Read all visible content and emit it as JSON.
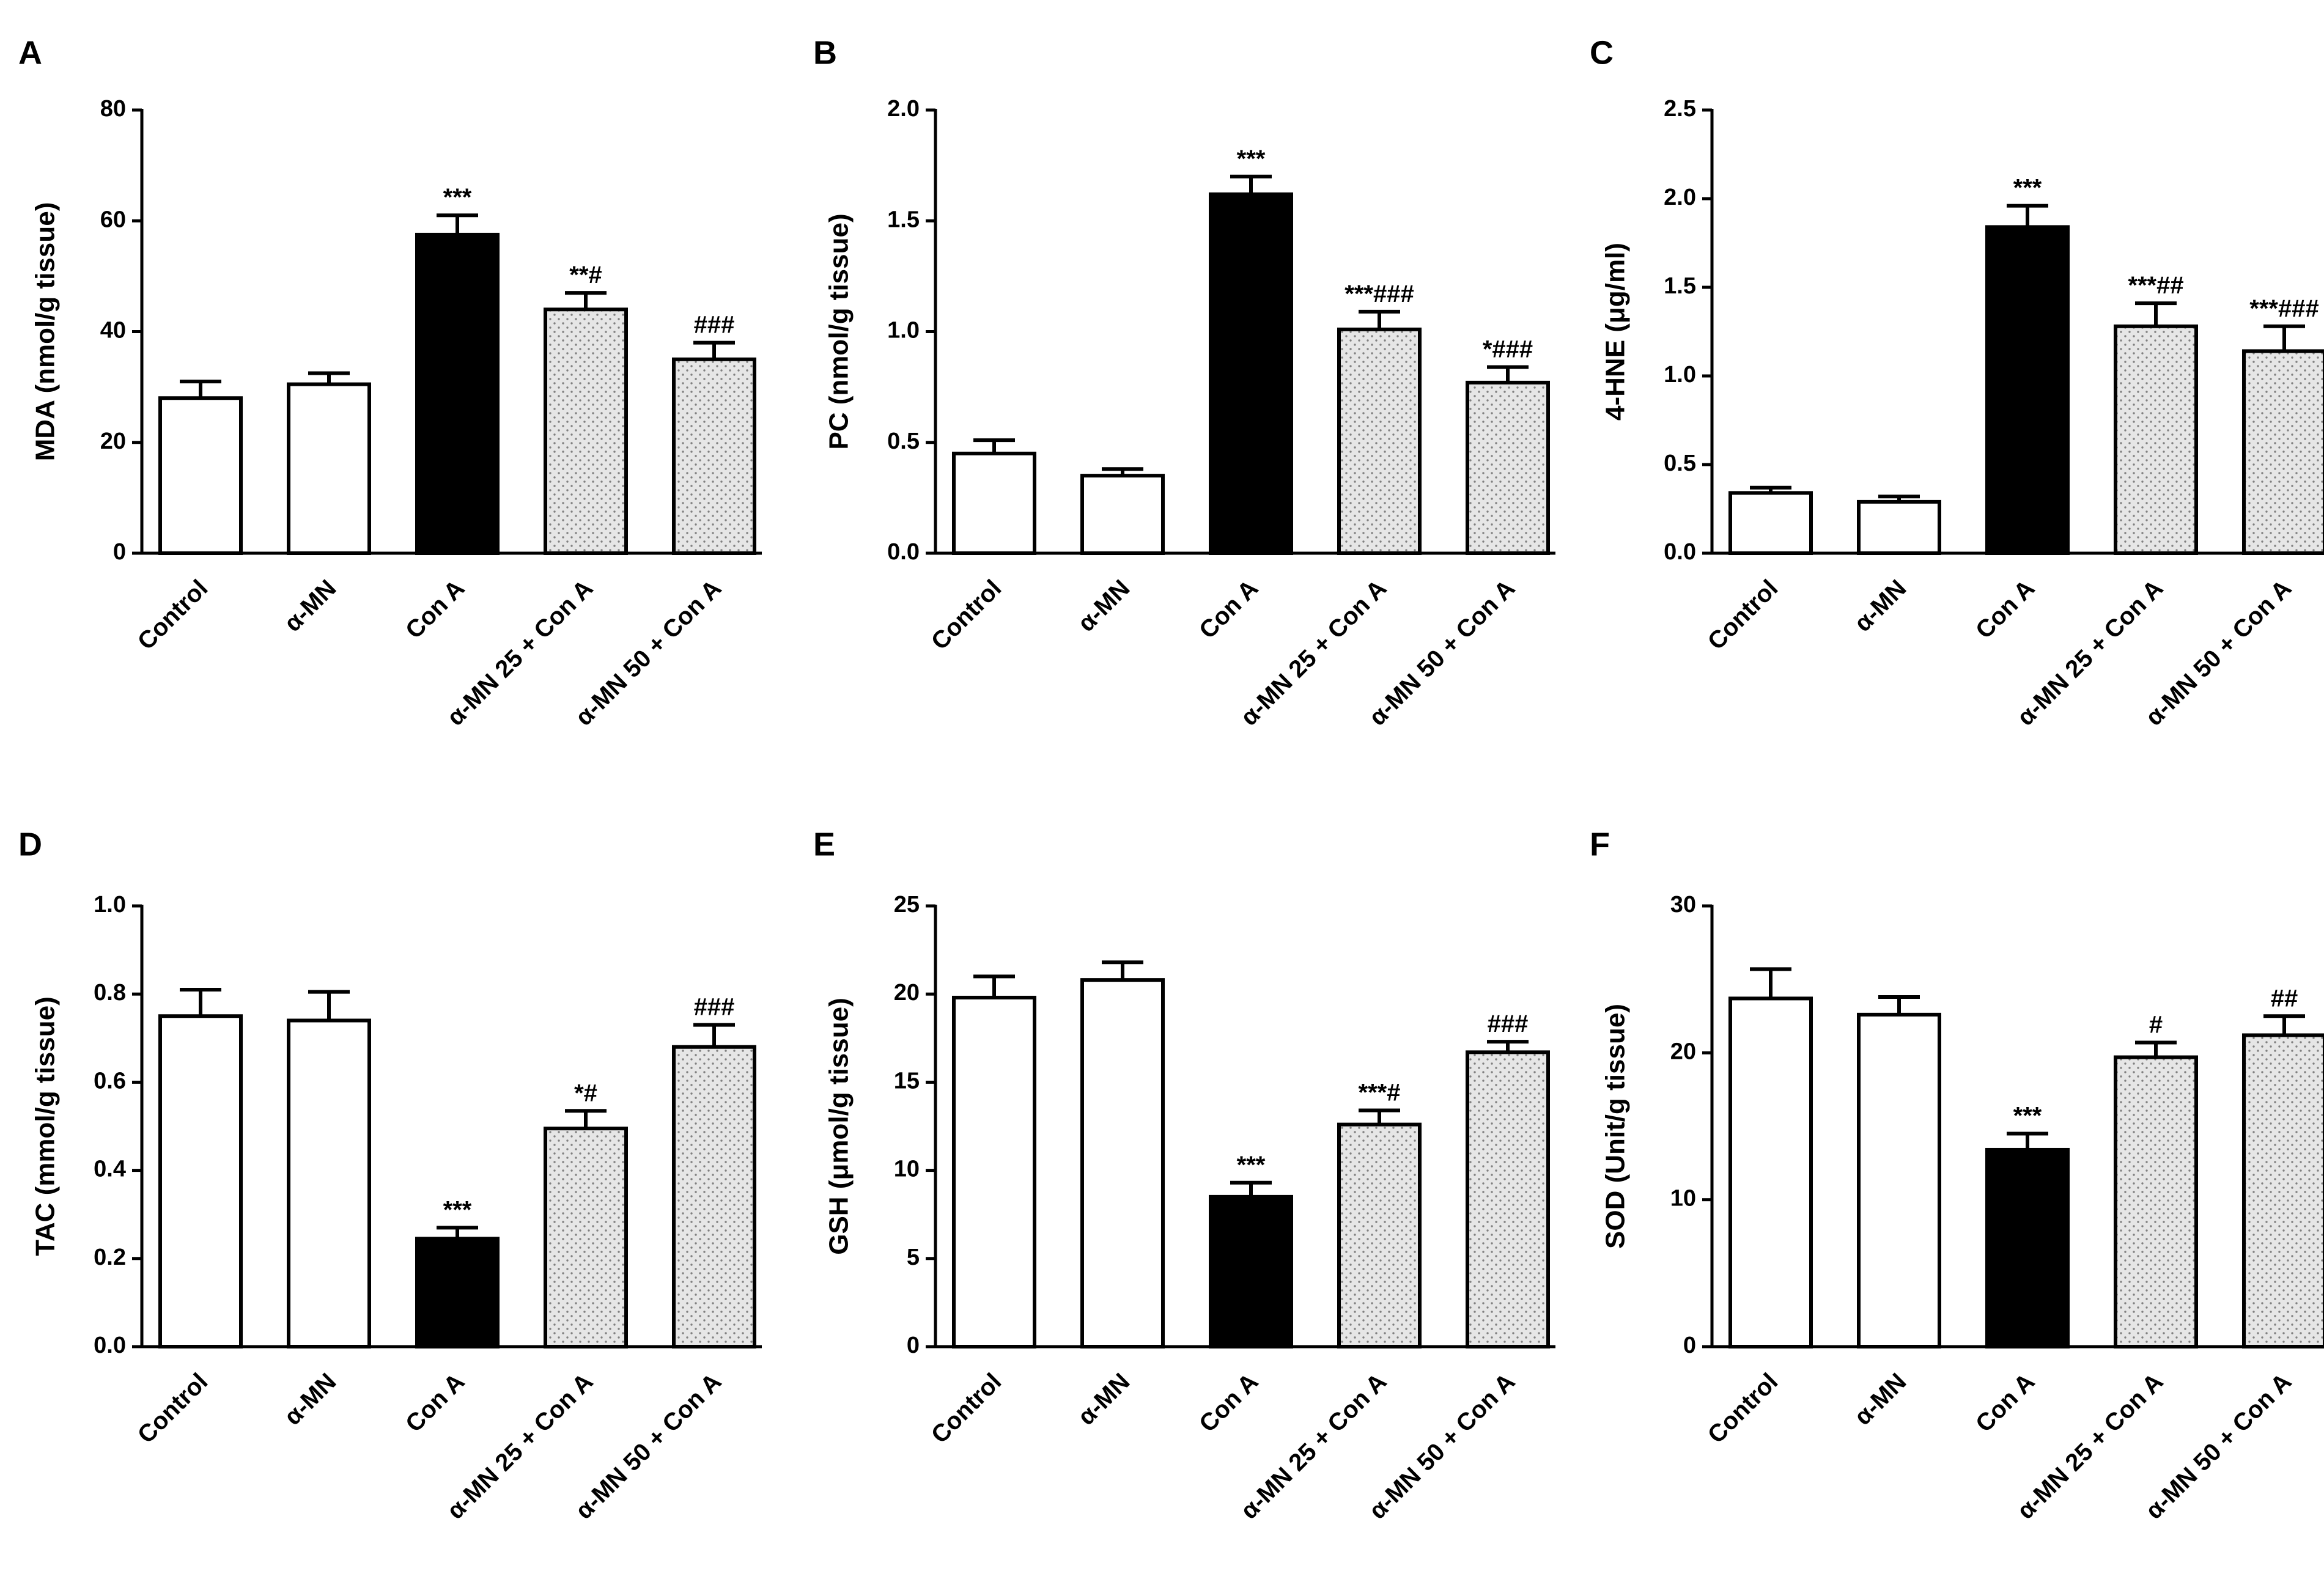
{
  "colors": {
    "axis": "#000000",
    "open_fill": "#ffffff",
    "solid_fill": "#000000",
    "dotted_fill": "#e6e6e6",
    "dot": "#808080"
  },
  "chart_data": [
    {
      "panel": "A",
      "type": "bar",
      "ylabel": "MDA (nmol/g tissue)",
      "ylim": [
        0,
        80
      ],
      "yticks": [
        0,
        20,
        40,
        60,
        80
      ],
      "ytick_labels": [
        "0",
        "20",
        "40",
        "60",
        "80"
      ],
      "categories": [
        "Control",
        "α-MN",
        "Con A",
        "α-MN 25 + Con A",
        "α-MN 50 + Con A"
      ],
      "values": [
        28,
        30.5,
        57.5,
        44,
        35
      ],
      "errors": [
        3,
        2,
        3.5,
        3,
        3
      ],
      "fills": [
        "open",
        "open",
        "solid",
        "dotted",
        "dotted"
      ],
      "annotations": [
        "",
        "",
        "***",
        "**#",
        "###"
      ]
    },
    {
      "panel": "B",
      "type": "bar",
      "ylabel": "PC (nmol/g tissue)",
      "ylim": [
        0,
        2.0
      ],
      "yticks": [
        0,
        0.5,
        1.0,
        1.5,
        2.0
      ],
      "ytick_labels": [
        "0.0",
        "0.5",
        "1.0",
        "1.5",
        "2.0"
      ],
      "categories": [
        "Control",
        "α-MN",
        "Con A",
        "α-MN 25 + Con A",
        "α-MN 50 + Con A"
      ],
      "values": [
        0.45,
        0.35,
        1.62,
        1.01,
        0.77
      ],
      "errors": [
        0.06,
        0.03,
        0.08,
        0.08,
        0.07
      ],
      "fills": [
        "open",
        "open",
        "solid",
        "dotted",
        "dotted"
      ],
      "annotations": [
        "",
        "",
        "***",
        "***###",
        "*###"
      ]
    },
    {
      "panel": "C",
      "type": "bar",
      "ylabel": "4-HNE (μg/ml)",
      "ylim": [
        0,
        2.5
      ],
      "yticks": [
        0,
        0.5,
        1.0,
        1.5,
        2.0,
        2.5
      ],
      "ytick_labels": [
        "0.0",
        "0.5",
        "1.0",
        "1.5",
        "2.0",
        "2.5"
      ],
      "categories": [
        "Control",
        "α-MN",
        "Con A",
        "α-MN 25 + Con A",
        "α-MN 50 + Con A"
      ],
      "values": [
        0.34,
        0.29,
        1.84,
        1.28,
        1.14
      ],
      "errors": [
        0.03,
        0.03,
        0.12,
        0.13,
        0.14
      ],
      "fills": [
        "open",
        "open",
        "solid",
        "dotted",
        "dotted"
      ],
      "annotations": [
        "",
        "",
        "***",
        "***##",
        "***###"
      ]
    },
    {
      "panel": "D",
      "type": "bar",
      "ylabel": "TAC (mmol/g tissue)",
      "ylim": [
        0,
        1.0
      ],
      "yticks": [
        0,
        0.2,
        0.4,
        0.6,
        0.8,
        1.0
      ],
      "ytick_labels": [
        "0.0",
        "0.2",
        "0.4",
        "0.6",
        "0.8",
        "1.0"
      ],
      "categories": [
        "Control",
        "α-MN",
        "Con A",
        "α-MN 25 + Con A",
        "α-MN 50 + Con A"
      ],
      "values": [
        0.75,
        0.74,
        0.245,
        0.495,
        0.68
      ],
      "errors": [
        0.06,
        0.065,
        0.025,
        0.04,
        0.05
      ],
      "fills": [
        "open",
        "open",
        "solid",
        "dotted",
        "dotted"
      ],
      "annotations": [
        "",
        "",
        "***",
        "*#",
        "###"
      ]
    },
    {
      "panel": "E",
      "type": "bar",
      "ylabel": "GSH (μmol/g tissue)",
      "ylim": [
        0,
        25
      ],
      "yticks": [
        0,
        5,
        10,
        15,
        20,
        25
      ],
      "ytick_labels": [
        "0",
        "5",
        "10",
        "15",
        "20",
        "25"
      ],
      "categories": [
        "Control",
        "α-MN",
        "Con A",
        "α-MN 25 + Con A",
        "α-MN 50 + Con A"
      ],
      "values": [
        19.8,
        20.8,
        8.5,
        12.6,
        16.7
      ],
      "errors": [
        1.2,
        1.0,
        0.8,
        0.8,
        0.6
      ],
      "fills": [
        "open",
        "open",
        "solid",
        "dotted",
        "dotted"
      ],
      "annotations": [
        "",
        "",
        "***",
        "***#",
        "###"
      ]
    },
    {
      "panel": "F",
      "type": "bar",
      "ylabel": "SOD (Unit/g tissue)",
      "ylim": [
        0,
        30
      ],
      "yticks": [
        0,
        10,
        20,
        30
      ],
      "ytick_labels": [
        "0",
        "10",
        "20",
        "30"
      ],
      "categories": [
        "Control",
        "α-MN",
        "Con A",
        "α-MN 25 + Con A",
        "α-MN 50 + Con A"
      ],
      "values": [
        23.7,
        22.6,
        13.4,
        19.7,
        21.2
      ],
      "errors": [
        2.0,
        1.2,
        1.1,
        1.0,
        1.3
      ],
      "fills": [
        "open",
        "open",
        "solid",
        "dotted",
        "dotted"
      ],
      "annotations": [
        "",
        "",
        "***",
        "#",
        "##"
      ]
    }
  ]
}
